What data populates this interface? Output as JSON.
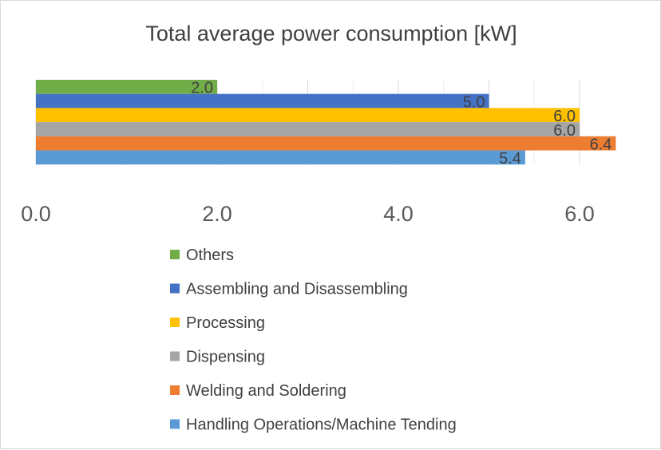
{
  "chart_data": {
    "type": "bar",
    "orientation": "horizontal",
    "title": "Total average power consumption  [kW]",
    "xlabel": "",
    "ylabel": "",
    "xlim": [
      0,
      6.4
    ],
    "xticks": [
      0.0,
      2.0,
      4.0,
      6.0
    ],
    "xtick_labels": [
      "0.0",
      "2.0",
      "4.0",
      "6.0"
    ],
    "grid": true,
    "legend_position": "bottom",
    "series": [
      {
        "name": "Others",
        "value": 2.0,
        "label": "2.0",
        "color": "#70ad47"
      },
      {
        "name": "Assembling and Disassembling",
        "value": 5.0,
        "label": "5.0",
        "color": "#4472c4"
      },
      {
        "name": "Processing",
        "value": 6.0,
        "label": "6.0",
        "color": "#ffc000"
      },
      {
        "name": "Dispensing",
        "value": 6.0,
        "label": "6.0",
        "color": "#a5a5a5"
      },
      {
        "name": "Welding and Soldering",
        "value": 6.4,
        "label": "6.4",
        "color": "#ed7d31"
      },
      {
        "name": "Handling Operations/Machine Tending",
        "value": 5.4,
        "label": "5.4",
        "color": "#5b9bd5"
      }
    ]
  }
}
